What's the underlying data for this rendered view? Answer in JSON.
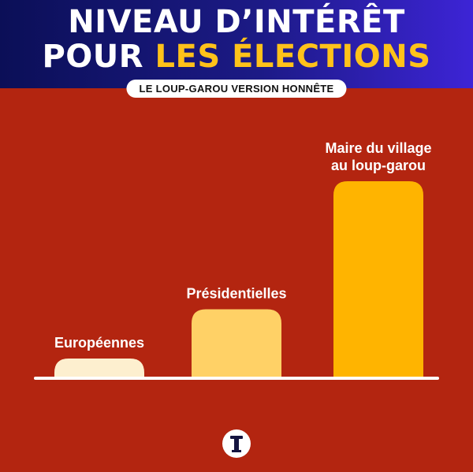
{
  "header": {
    "title_line1": "NIVEAU D’INTÉRÊT",
    "title_line2_part1": "POUR ",
    "title_line2_part2": "LES ÉLECTIONS",
    "subtitle": "LE LOUP-GAROU VERSION HONNÊTE"
  },
  "colors": {
    "background": "#b32510",
    "header_gradient_start": "#0b0f57",
    "header_gradient_end": "#3d24d6",
    "highlight": "#ffc21a",
    "bar_1": "#fdefcf",
    "bar_2": "#ffd166",
    "bar_3": "#ffb400",
    "baseline": "#ffffff"
  },
  "logo": {
    "icon": "tower-logo-icon"
  },
  "chart_data": {
    "type": "bar",
    "title": "",
    "xlabel": "",
    "ylabel": "",
    "grid": false,
    "legend": "none",
    "ylim": [
      0,
      100
    ],
    "categories": [
      "Européennes",
      "Présidentielles",
      "Maire du village au loup-garou"
    ],
    "category_lines": [
      [
        "Européennes"
      ],
      [
        "Présidentielles"
      ],
      [
        "Maire du village",
        "au loup-garou"
      ]
    ],
    "values": [
      10,
      35,
      100
    ]
  }
}
